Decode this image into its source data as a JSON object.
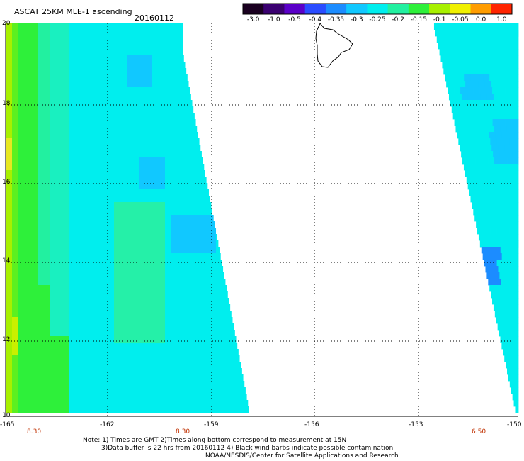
{
  "header": {
    "title": "ASCAT 25KM MLE-1 ascending",
    "date": "20160112"
  },
  "colorbar": {
    "labels": [
      "-3.0",
      "-1.0",
      "-0.5",
      "-0.4",
      "-0.35",
      "-0.3",
      "-0.25",
      "-0.2",
      "-0.15",
      "-0.1",
      "-0.05",
      "0.0",
      "1.0"
    ],
    "colors": [
      "#1a0020",
      "#3a0070",
      "#5a00c8",
      "#2a4cff",
      "#1c8cff",
      "#11c8ff",
      "#00eeee",
      "#22f0a0",
      "#2ef03a",
      "#a8f000",
      "#f0f000",
      "#ff9c00",
      "#ff2400"
    ]
  },
  "map": {
    "lat_labels": [
      "20",
      "18",
      "16",
      "14",
      "12",
      "10"
    ],
    "lon_labels": [
      "-165",
      "-162",
      "-159",
      "-156",
      "-153",
      "-150"
    ],
    "time_labels": [
      "8.30",
      "8.30",
      "6.50"
    ]
  },
  "notes": [
    "Note: 1) Times are GMT 2)Times along bottom correspond to measurement at 15N",
    "3)Data buffer is 22 hrs from 20160112 4) Black wind barbs indicate possible contamination",
    "NOAA/NESDIS/Center for Satellite Applications and Research"
  ]
}
